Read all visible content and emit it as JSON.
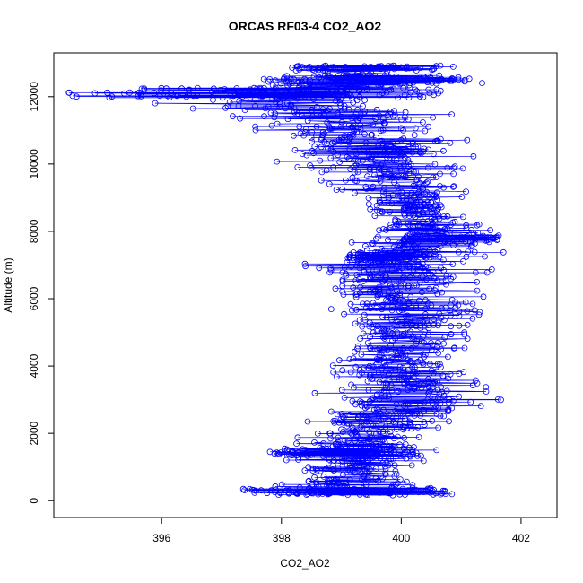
{
  "chart_data": {
    "type": "scatter",
    "title": "ORCAS RF03-4 CO2_AO2",
    "xlabel": "CO2_AO2",
    "ylabel": "Altitude (m)",
    "xlim": [
      394.2,
      402.6
    ],
    "ylim": [
      -500,
      13300
    ],
    "xticks": [
      396,
      398,
      400,
      402
    ],
    "yticks": [
      0,
      2000,
      4000,
      6000,
      8000,
      10000,
      12000
    ],
    "marker": "open-circle",
    "connect_points": true,
    "grid": false,
    "series": [
      {
        "color": "#0000ff",
        "profile": [
          {
            "y": 150,
            "xmin": 397.1,
            "xmax": 401.0
          },
          {
            "y": 500,
            "xmin": 397.4,
            "xmax": 400.9
          },
          {
            "y": 1000,
            "xmin": 397.6,
            "xmax": 400.8
          },
          {
            "y": 1500,
            "xmin": 397.8,
            "xmax": 400.7
          },
          {
            "y": 2000,
            "xmin": 397.9,
            "xmax": 400.8
          },
          {
            "y": 2500,
            "xmin": 398.0,
            "xmax": 401.6
          },
          {
            "y": 3000,
            "xmin": 398.1,
            "xmax": 402.2
          },
          {
            "y": 3500,
            "xmin": 398.3,
            "xmax": 401.7
          },
          {
            "y": 4000,
            "xmin": 398.4,
            "xmax": 401.5
          },
          {
            "y": 4500,
            "xmin": 398.5,
            "xmax": 401.4
          },
          {
            "y": 5000,
            "xmin": 398.5,
            "xmax": 401.6
          },
          {
            "y": 5500,
            "xmin": 398.4,
            "xmax": 402.0
          },
          {
            "y": 6000,
            "xmin": 398.3,
            "xmax": 401.6
          },
          {
            "y": 6500,
            "xmin": 398.2,
            "xmax": 401.6
          },
          {
            "y": 7000,
            "xmin": 398.1,
            "xmax": 401.8
          },
          {
            "y": 7500,
            "xmin": 398.6,
            "xmax": 402.2
          },
          {
            "y": 8000,
            "xmin": 399.0,
            "xmax": 401.8
          },
          {
            "y": 8500,
            "xmin": 399.2,
            "xmax": 401.4
          },
          {
            "y": 9000,
            "xmin": 398.9,
            "xmax": 401.4
          },
          {
            "y": 9500,
            "xmin": 398.2,
            "xmax": 401.5
          },
          {
            "y": 10000,
            "xmin": 397.5,
            "xmax": 401.8
          },
          {
            "y": 10500,
            "xmin": 397.6,
            "xmax": 401.6
          },
          {
            "y": 11000,
            "xmin": 397.3,
            "xmax": 401.5
          },
          {
            "y": 11500,
            "xmin": 396.3,
            "xmax": 401.5
          },
          {
            "y": 12000,
            "xmin": 394.4,
            "xmax": 401.1
          },
          {
            "y": 12500,
            "xmin": 397.5,
            "xmax": 401.4
          },
          {
            "y": 12900,
            "xmin": 397.5,
            "xmax": 400.9
          }
        ],
        "dense_bands": [
          {
            "y": 12050,
            "xmin": 394.4,
            "xmax": 400.6
          },
          {
            "y": 12180,
            "xmin": 395.0,
            "xmax": 401.0
          },
          {
            "y": 12450,
            "xmin": 397.6,
            "xmax": 401.4
          },
          {
            "y": 12550,
            "xmin": 398.0,
            "xmax": 401.2
          },
          {
            "y": 12850,
            "xmin": 398.0,
            "xmax": 400.9
          },
          {
            "y": 7300,
            "xmin": 399.1,
            "xmax": 400.5
          },
          {
            "y": 7200,
            "xmin": 399.2,
            "xmax": 400.3
          },
          {
            "y": 7800,
            "xmin": 400.0,
            "xmax": 401.7
          },
          {
            "y": 1400,
            "xmin": 397.8,
            "xmax": 400.4
          },
          {
            "y": 1500,
            "xmin": 398.0,
            "xmax": 400.6
          },
          {
            "y": 250,
            "xmin": 397.1,
            "xmax": 400.9
          },
          {
            "y": 300,
            "xmin": 397.3,
            "xmax": 400.8
          }
        ]
      }
    ]
  }
}
